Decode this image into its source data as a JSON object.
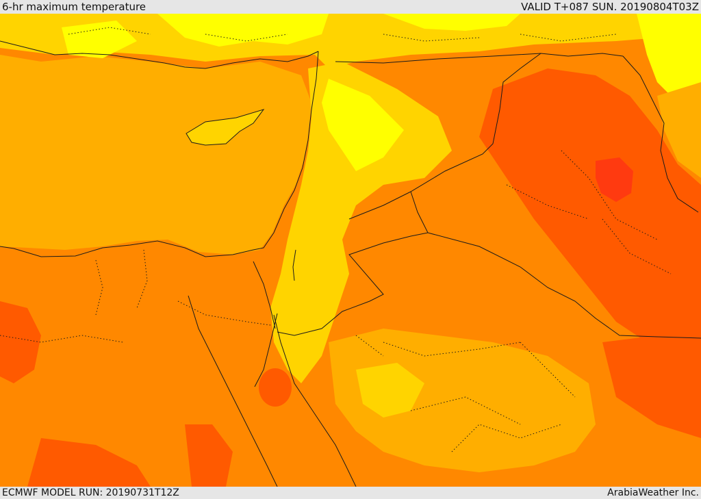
{
  "header": {
    "title": "6-hr maximum temperature",
    "valid_time": "VALID T+087 SUN. 20190804T03Z"
  },
  "footer": {
    "model_run": "ECMWF MODEL RUN: 20190731T12Z",
    "credit": "ArabiaWeather Inc."
  },
  "colors": {
    "band_1": "#ffff00",
    "band_2": "#ffd400",
    "band_3": "#ffae00",
    "band_4": "#ff8800",
    "band_5": "#ff5a00",
    "band_6": "#ff3a10",
    "border_line": "#1a1a1a",
    "header_bg": "#e6e6e6"
  }
}
